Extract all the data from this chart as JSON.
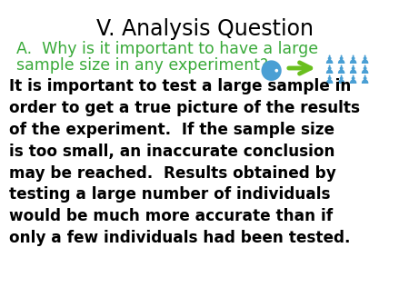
{
  "title": "V. Analysis Question",
  "subtitle_line1": "A.  Why is it important to have a large",
  "subtitle_line2": "sample size in any experiment?",
  "body": "It is important to test a large sample in\norder to get a true picture of the results\nof the experiment.  If the sample size\nis too small, an inaccurate conclusion\nmay be reached.  Results obtained by\ntesting a large number of individuals\nwould be much more accurate than if\nonly a few individuals had been tested.",
  "title_color": "#000000",
  "subtitle_color": "#3aaa3a",
  "body_color": "#000000",
  "background_color": "#ffffff",
  "arrow_color": "#6abf1e",
  "icon_color": "#4a9fd4",
  "title_fontsize": 17,
  "subtitle_fontsize": 12.5,
  "body_fontsize": 12.2
}
